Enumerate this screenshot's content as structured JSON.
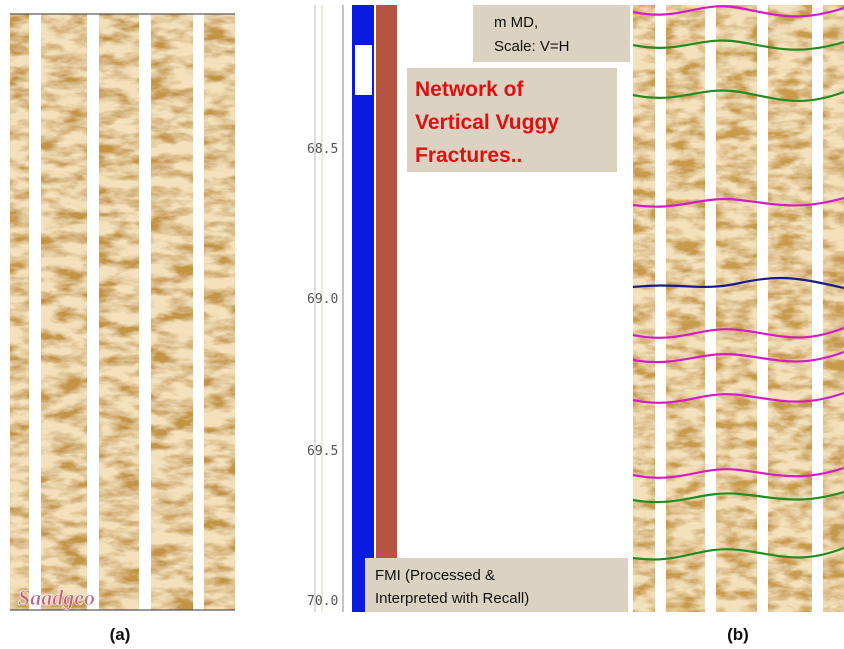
{
  "panel_a": {
    "label": "(a)",
    "watermark": "Saadgeo"
  },
  "panel_b": {
    "label": "(b)",
    "depth_labels": [
      "68.5",
      "69.0",
      "69.5",
      "70.0"
    ],
    "header_box": {
      "lines": [
        "m MD,",
        "Scale: V=H"
      ]
    },
    "annotation": {
      "lines": [
        "Network of",
        "Vertical Vuggy",
        "Fractures.."
      ]
    },
    "footer_box": {
      "lines": [
        "FMI (Processed &",
        "Interpreted with Recall)"
      ]
    }
  }
}
